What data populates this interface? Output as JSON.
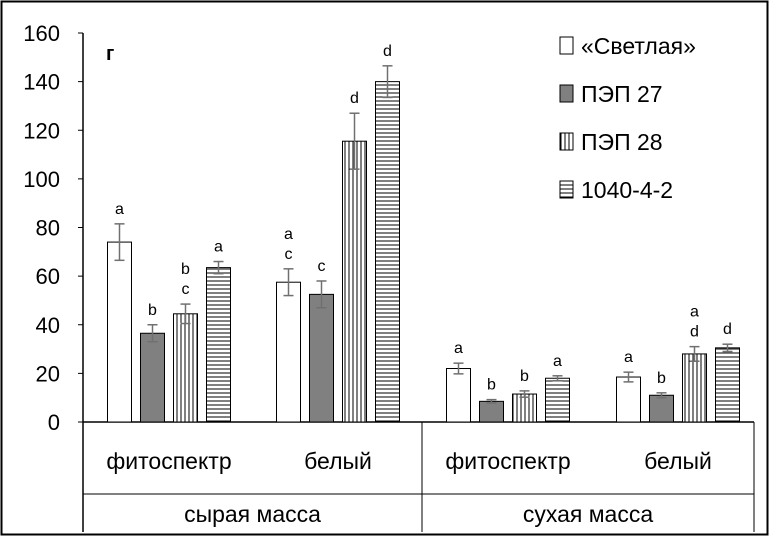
{
  "chart_data": {
    "type": "bar",
    "panel_label": "г",
    "ylim": [
      0,
      160
    ],
    "yticks": [
      "0",
      "20",
      "40",
      "60",
      "80",
      "100",
      "120",
      "140",
      "160"
    ],
    "groups": [
      {
        "label": "сырая масса",
        "categories": [
          "фитоспектр",
          "белый"
        ]
      },
      {
        "label": "сухая масса",
        "categories": [
          "фитоспектр",
          "белый"
        ]
      }
    ],
    "series": [
      {
        "name": "«Светлая»",
        "pattern": "white",
        "values": [
          74,
          57.5,
          22,
          18.5
        ],
        "errors": [
          7.5,
          5.5,
          2.2,
          2.0
        ],
        "letters": [
          [
            "a"
          ],
          [
            "a",
            "c"
          ],
          [
            "a"
          ],
          [
            "a"
          ]
        ]
      },
      {
        "name": "ПЭП 27",
        "pattern": "gray",
        "values": [
          36.5,
          52.5,
          8.5,
          11
        ],
        "errors": [
          3.5,
          5.5,
          0.7,
          1.0
        ],
        "letters": [
          [
            "b"
          ],
          [
            "c"
          ],
          [
            "b"
          ],
          [
            "b"
          ]
        ]
      },
      {
        "name": "ПЭП 28",
        "pattern": "vertical",
        "values": [
          44.5,
          115.5,
          11.5,
          28
        ],
        "errors": [
          4.0,
          11.5,
          1.3,
          3.0
        ],
        "letters": [
          [
            "b",
            "c"
          ],
          [
            "d"
          ],
          [
            "b"
          ],
          [
            "a",
            "d"
          ]
        ]
      },
      {
        "name": "1040-4-2",
        "pattern": "horizontal",
        "values": [
          63.5,
          140,
          18,
          30.5
        ],
        "errors": [
          2.5,
          6.5,
          1.0,
          1.5
        ],
        "letters": [
          [
            "a"
          ],
          [
            "d"
          ],
          [
            "a"
          ],
          [
            "d"
          ]
        ]
      }
    ],
    "legend_position": "top-right",
    "grid": false,
    "colors": {
      "white": "#ffffff",
      "gray": "#808080",
      "stroke": "#000000",
      "error": "#707070"
    }
  }
}
